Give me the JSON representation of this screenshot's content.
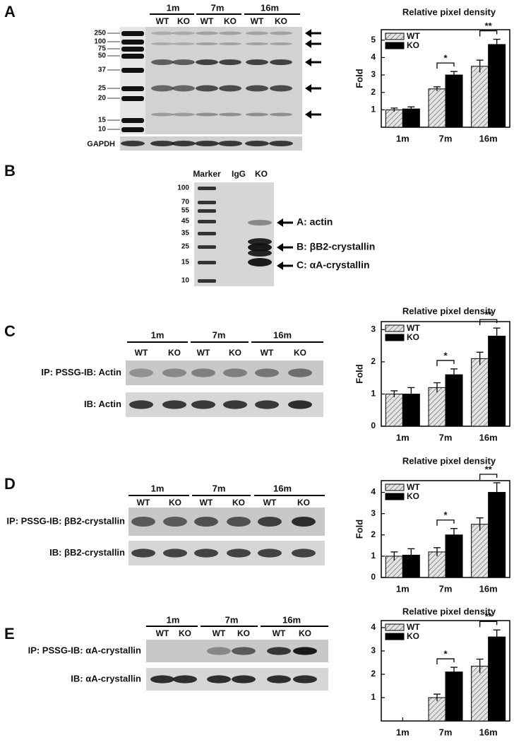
{
  "panel_labels": [
    "A",
    "B",
    "C",
    "D",
    "E"
  ],
  "blot_a": {
    "ages": [
      "1m",
      "7m",
      "16m"
    ],
    "genotypes": [
      "WT",
      "KO",
      "WT",
      "KO",
      "WT",
      "KO"
    ],
    "markers": [
      "250",
      "100",
      "75",
      "50",
      "37",
      "25",
      "20",
      "15",
      "10"
    ],
    "loading": "GAPDH"
  },
  "blot_b": {
    "lanes": [
      "Marker",
      "IgG",
      "KO"
    ],
    "markers": [
      "100",
      "70",
      "55",
      "45",
      "35",
      "25",
      "15",
      "10"
    ],
    "bands": [
      "A: actin",
      "B: βB2-crystallin",
      "C: αA-crystallin"
    ]
  },
  "blot_c": {
    "ages": [
      "1m",
      "7m",
      "16m"
    ],
    "genotypes": [
      "WT",
      "KO",
      "WT",
      "KO",
      "WT",
      "KO"
    ],
    "rows": [
      "IP: PSSG-IB: Actin",
      "IB: Actin"
    ]
  },
  "blot_d": {
    "ages": [
      "1m",
      "7m",
      "16m"
    ],
    "genotypes": [
      "WT",
      "KO",
      "WT",
      "KO",
      "WT",
      "KO"
    ],
    "rows": [
      "IP: PSSG-IB: βB2-crystallin",
      "IB: βB2-crystallin"
    ]
  },
  "blot_e": {
    "ages": [
      "1m",
      "7m",
      "16m"
    ],
    "genotypes": [
      "WT",
      "KO",
      "WT",
      "KO",
      "WT",
      "KO"
    ],
    "rows": [
      "IP: PSSG-IB: αA-crystallin",
      "IB: αA-crystallin"
    ]
  },
  "chart_data": [
    {
      "type": "bar",
      "title": "Relative pixel density",
      "ylabel": "Fold",
      "legend": "upper left",
      "categories": [
        "1m",
        "7m",
        "16m"
      ],
      "ylim": [
        0,
        5.6
      ],
      "yticks": [
        1,
        2,
        3,
        4,
        5
      ],
      "series": [
        {
          "name": "WT",
          "color": "#8c8c8c",
          "hatch": true,
          "values": [
            1.0,
            2.2,
            3.5
          ],
          "errors": [
            0.1,
            0.12,
            0.35
          ]
        },
        {
          "name": "KO",
          "color": "#000000",
          "values": [
            1.05,
            3.0,
            4.75
          ],
          "errors": [
            0.12,
            0.2,
            0.3
          ]
        }
      ],
      "significance": [
        null,
        "*",
        "**"
      ]
    },
    {
      "type": "bar",
      "title": "Relative pixel density",
      "ylabel": "Fold",
      "legend": "upper left",
      "categories": [
        "1m",
        "7m",
        "16m"
      ],
      "ylim": [
        0,
        3.25
      ],
      "yticks": [
        0,
        1,
        2,
        3
      ],
      "series": [
        {
          "name": "WT",
          "color": "#8c8c8c",
          "hatch": true,
          "values": [
            1.0,
            1.2,
            2.1
          ],
          "errors": [
            0.1,
            0.15,
            0.2
          ]
        },
        {
          "name": "KO",
          "color": "#000000",
          "values": [
            1.0,
            1.6,
            2.8
          ],
          "errors": [
            0.2,
            0.18,
            0.25
          ]
        }
      ],
      "significance": [
        null,
        "*",
        "**"
      ]
    },
    {
      "type": "bar",
      "title": "Relative pixel density",
      "ylabel": "Fold",
      "legend": "upper left",
      "categories": [
        "1m",
        "7m",
        "16m"
      ],
      "ylim": [
        0,
        4.55
      ],
      "yticks": [
        0,
        1,
        2,
        3,
        4
      ],
      "series": [
        {
          "name": "WT",
          "color": "#8c8c8c",
          "hatch": true,
          "values": [
            1.0,
            1.2,
            2.5
          ],
          "errors": [
            0.2,
            0.2,
            0.3
          ]
        },
        {
          "name": "KO",
          "color": "#000000",
          "values": [
            1.05,
            2.0,
            4.0
          ],
          "errors": [
            0.3,
            0.3,
            0.45
          ]
        }
      ],
      "significance": [
        null,
        "*",
        "**"
      ]
    },
    {
      "type": "bar",
      "title": "Relative pixel density",
      "legend": "upper left",
      "categories": [
        "1m",
        "7m",
        "16m"
      ],
      "ylim": [
        0,
        4.3
      ],
      "yticks": [
        1,
        2,
        3,
        4
      ],
      "series": [
        {
          "name": "WT",
          "color": "#8c8c8c",
          "hatch": true,
          "values": [
            null,
            1.0,
            2.35
          ],
          "errors": [
            null,
            0.15,
            0.3
          ]
        },
        {
          "name": "KO",
          "color": "#000000",
          "values": [
            null,
            2.1,
            3.6
          ],
          "errors": [
            null,
            0.2,
            0.3
          ]
        }
      ],
      "significance": [
        null,
        "*",
        "**"
      ]
    }
  ]
}
